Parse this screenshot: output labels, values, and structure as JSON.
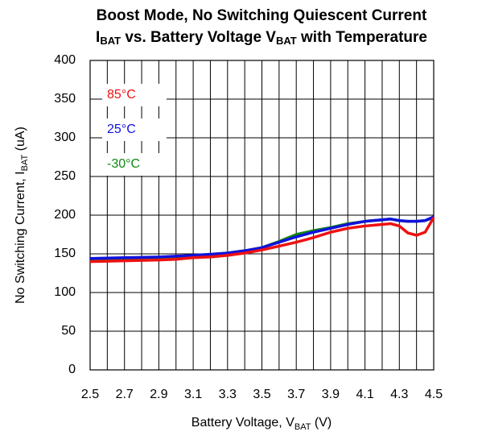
{
  "chart_data": {
    "type": "line",
    "title": "Boost Mode, No Switching Quiescent Current",
    "subtitle": [
      "I",
      "BAT",
      " vs. Battery Voltage V",
      "BAT",
      " with Temperature"
    ],
    "xlabel": [
      "Battery Voltage, V",
      "BAT",
      " (V)"
    ],
    "ylabel": [
      "No Switching Current,  I",
      "BAT",
      " (uA)"
    ],
    "x": [
      2.5,
      2.6,
      2.7,
      2.8,
      2.9,
      3.0,
      3.1,
      3.2,
      3.3,
      3.4,
      3.5,
      3.6,
      3.7,
      3.8,
      3.9,
      4.0,
      4.1,
      4.2,
      4.25,
      4.3,
      4.35,
      4.4,
      4.45,
      4.5
    ],
    "series": [
      {
        "name": "85°C",
        "color": "#ee1111",
        "values": [
          140,
          140.5,
          141,
          141.5,
          142,
          143,
          145,
          146,
          148,
          151,
          155,
          160,
          165,
          171,
          178,
          183,
          186,
          188,
          189,
          186,
          177,
          174,
          178,
          197
        ]
      },
      {
        "name": "25°C",
        "color": "#1111dd",
        "values": [
          144,
          144.5,
          145,
          145.5,
          146,
          147,
          148,
          149.5,
          151,
          154,
          158,
          165,
          172,
          178,
          183,
          188,
          192,
          194,
          195,
          193,
          192,
          192,
          193,
          198
        ]
      },
      {
        "name": "-30°C",
        "color": "#118811",
        "values": [
          143,
          143.5,
          144,
          145,
          145.5,
          146.5,
          147.5,
          149,
          151,
          154,
          158,
          166,
          175,
          180,
          184,
          189,
          192,
          194,
          195,
          193,
          192,
          192,
          193,
          197
        ]
      }
    ],
    "xlim": [
      2.5,
      4.5
    ],
    "xticks": [
      2.5,
      2.7,
      2.9,
      3.1,
      3.3,
      3.5,
      3.7,
      3.9,
      4.1,
      4.3,
      4.5
    ],
    "ylim": [
      0,
      400
    ],
    "yticks": [
      0,
      50,
      100,
      150,
      200,
      250,
      300,
      350,
      400
    ],
    "grid": true,
    "minor_x_grid": true,
    "legend": "upper left"
  }
}
